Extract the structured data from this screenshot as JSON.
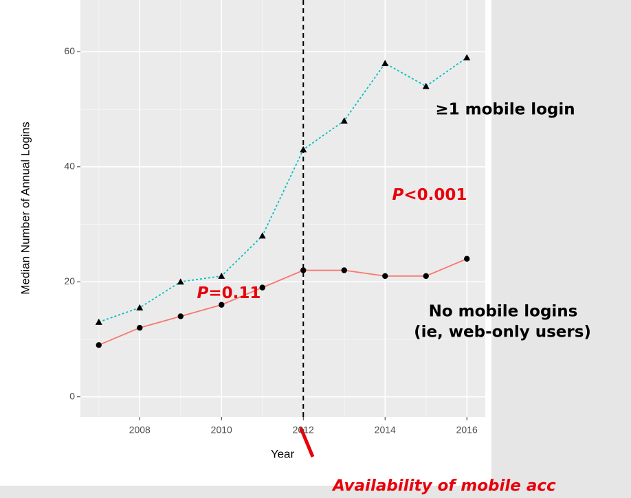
{
  "chart_data": {
    "type": "line",
    "x_label": "Year",
    "y_label": "Median Number of Annual Logins",
    "x": [
      2007,
      2008,
      2009,
      2010,
      2011,
      2012,
      2013,
      2014,
      2015,
      2016
    ],
    "series": [
      {
        "name": "≥1 mobile login",
        "color": "#00bfc4",
        "marker": "triangle",
        "dash": "dotted",
        "values": [
          13,
          15.5,
          20,
          21,
          28,
          43,
          48,
          58,
          54,
          59
        ]
      },
      {
        "name": "No mobile logins",
        "color": "#f8766d",
        "marker": "circle",
        "dash": "solid",
        "values": [
          9,
          12,
          14,
          16,
          19,
          22,
          22,
          21,
          21,
          24
        ]
      }
    ],
    "xlim": [
      2006.55,
      2016.45
    ],
    "ylim": [
      -3.5,
      69
    ],
    "xticks": [
      2008,
      2010,
      2012,
      2014,
      2016
    ],
    "yticks": [
      0,
      20,
      40,
      60
    ],
    "grid": true,
    "minor_grid": true,
    "vline_x": 2012,
    "annotations": [
      "P",
      "<0.001",
      "P",
      "=0.11",
      "(ie, web-only users)",
      "Availability of mobile acc"
    ]
  }
}
